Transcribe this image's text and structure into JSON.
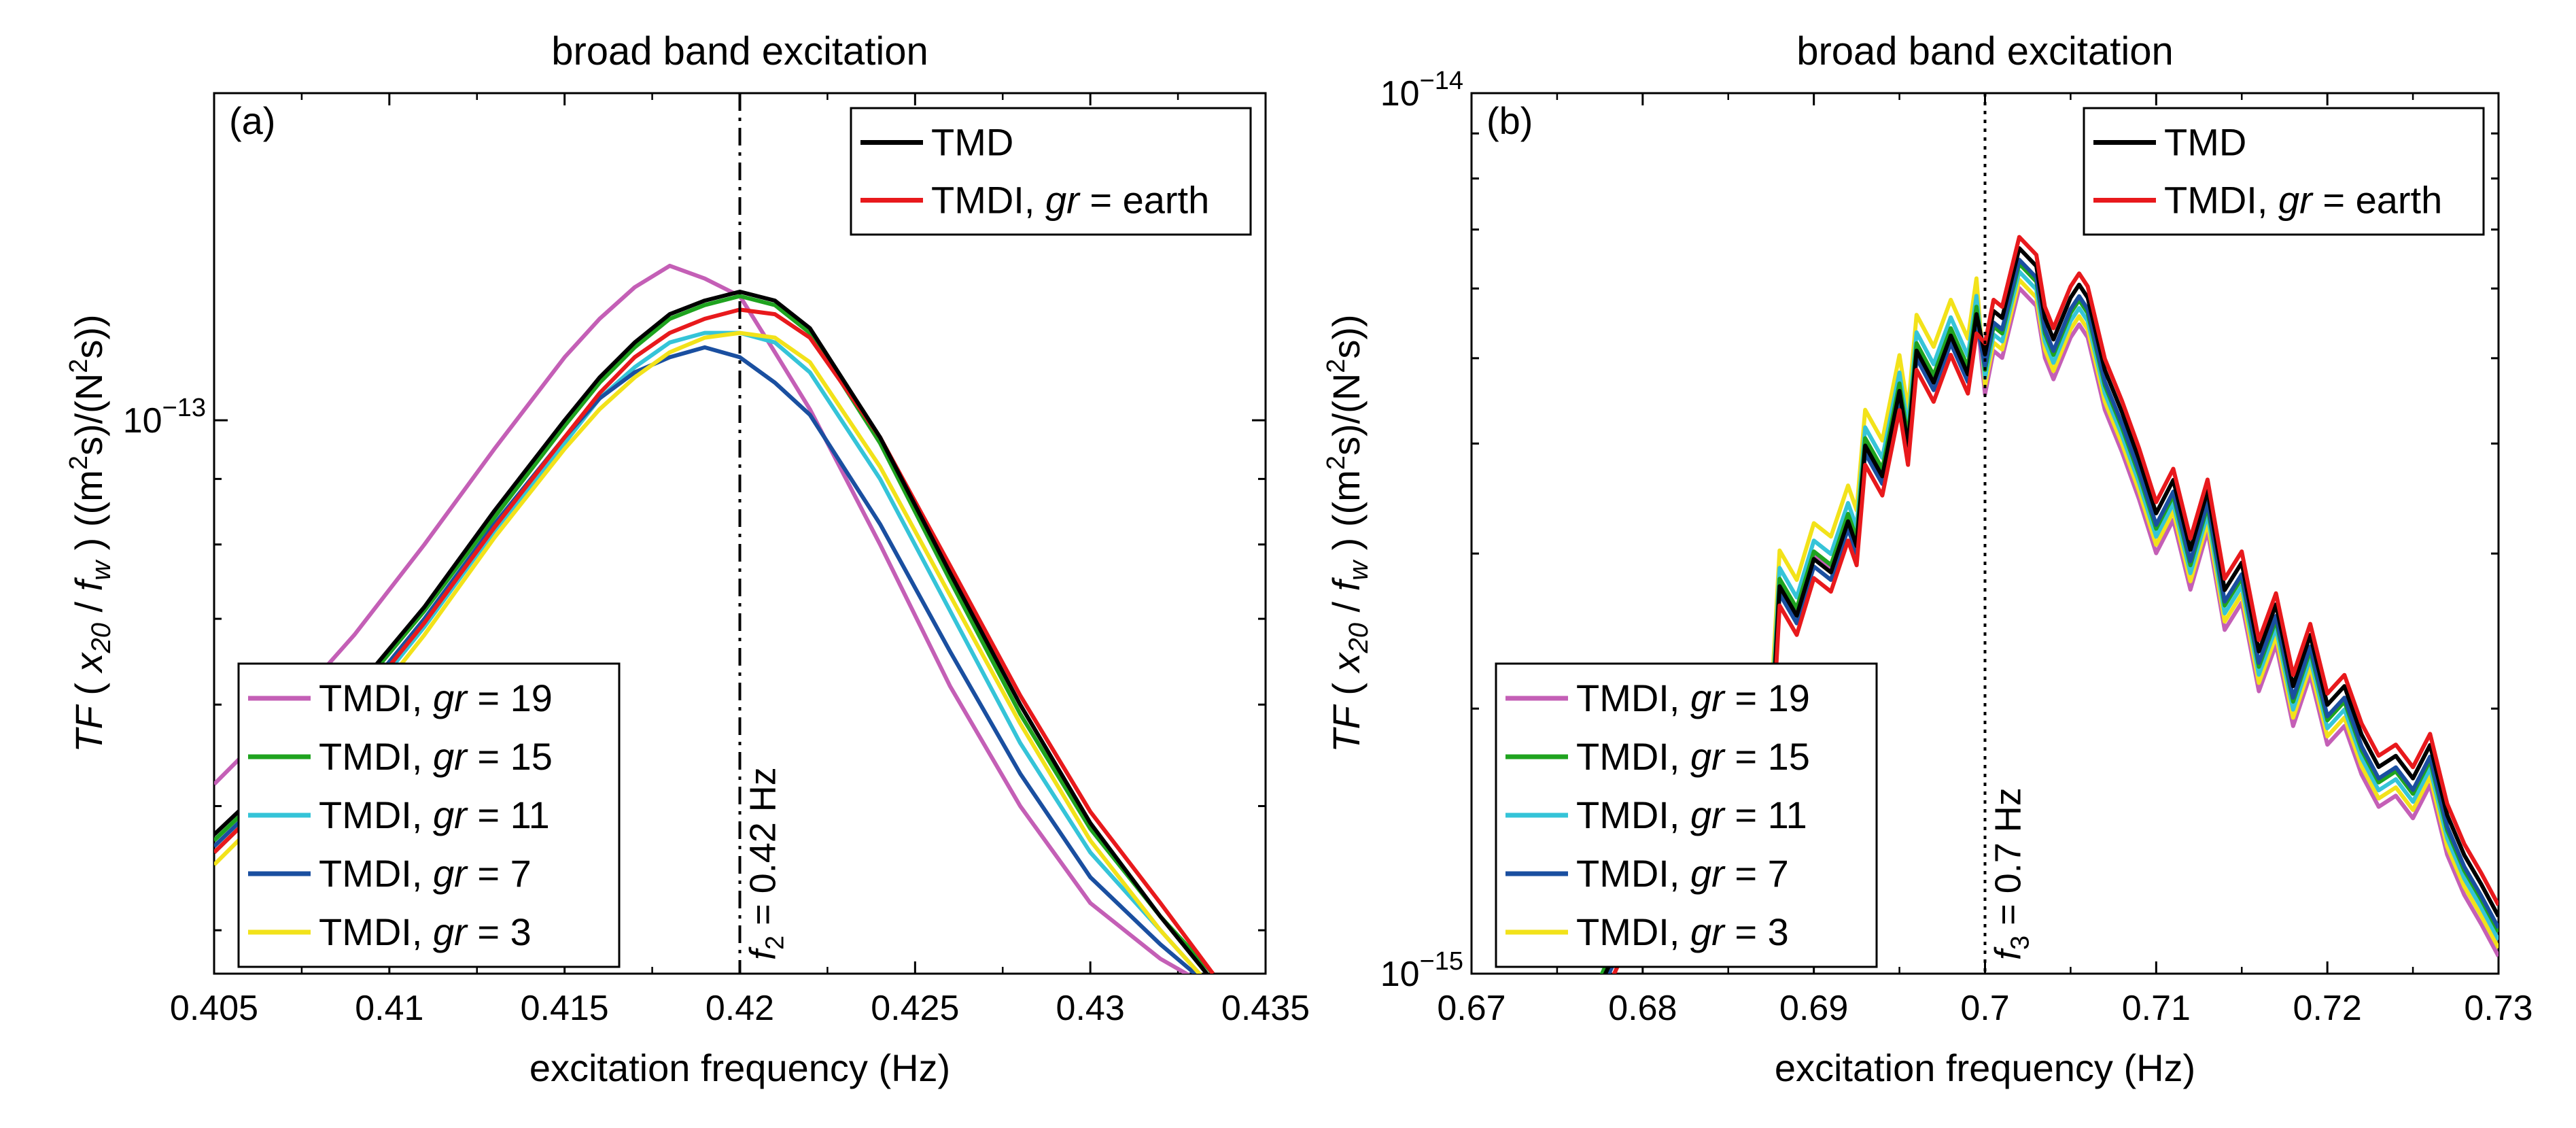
{
  "chart_data": [
    {
      "type": "line",
      "panel_label": "(a)",
      "title": "broad band excitation",
      "xlabel": "excitation frequency (Hz)",
      "ylabel_prefix": "TF",
      "ylabel_arg": "( x20 / fw )",
      "ylabel_units": "((m2s)/(N2s))",
      "xscale": "linear",
      "yscale": "log",
      "xlim": [
        0.405,
        0.435
      ],
      "ylim": [
        3.7e-14,
        1.8e-13
      ],
      "x_ticks": [
        0.405,
        0.41,
        0.415,
        0.42,
        0.425,
        0.43,
        0.435
      ],
      "x_tick_labels": [
        "0.405",
        "0.41",
        "0.415",
        "0.42",
        "0.425",
        "0.43",
        "0.435"
      ],
      "y_tick_labels": [
        {
          "value": 1e-13,
          "base": "10",
          "exp": "−13"
        }
      ],
      "vline": {
        "x": 0.42,
        "style": "dashdot",
        "label_prefix": "f",
        "label_sub": "2",
        "label_rest": " = 0.42 Hz"
      },
      "legend_top": [
        {
          "name_pre": "TMD",
          "name_italic": "",
          "name_post": "",
          "color": "#000000"
        },
        {
          "name_pre": "TMDI, ",
          "name_italic": "gr",
          "name_post": " = earth",
          "color": "#e8191c"
        }
      ],
      "legend_bottom": [
        {
          "name_pre": "TMDI, ",
          "name_italic": "gr",
          "name_post": " = 19",
          "color": "#c45fb6"
        },
        {
          "name_pre": "TMDI, ",
          "name_italic": "gr",
          "name_post": " = 15",
          "color": "#1fa31f"
        },
        {
          "name_pre": "TMDI, ",
          "name_italic": "gr",
          "name_post": " = 11",
          "color": "#35c4d8"
        },
        {
          "name_pre": "TMDI, ",
          "name_italic": "gr",
          "name_post": " = 7",
          "color": "#1a4fa0"
        },
        {
          "name_pre": "TMDI, ",
          "name_italic": "gr",
          "name_post": " = 3",
          "color": "#f2e21a"
        }
      ],
      "series": [
        {
          "name": "TMDI, gr = 19",
          "color": "#c45fb6",
          "x": [
            0.405,
            0.407,
            0.409,
            0.411,
            0.413,
            0.415,
            0.416,
            0.417,
            0.418,
            0.419,
            0.42,
            0.421,
            0.422,
            0.424,
            0.426,
            0.428,
            0.43,
            0.432,
            0.4335
          ],
          "y": [
            5.2e-14,
            5.9e-14,
            6.8e-14,
            8e-14,
            9.5e-14,
            1.12e-13,
            1.2e-13,
            1.27e-13,
            1.32e-13,
            1.29e-13,
            1.25e-13,
            1.13e-13,
            1.02e-13,
            8e-14,
            6.2e-14,
            5e-14,
            4.2e-14,
            3.8e-14,
            3.6e-14
          ]
        },
        {
          "name": "TMDI, gr = 15",
          "color": "#1fa31f",
          "x": [
            0.405,
            0.407,
            0.409,
            0.411,
            0.413,
            0.415,
            0.416,
            0.417,
            0.418,
            0.419,
            0.42,
            0.421,
            0.422,
            0.424,
            0.426,
            0.428,
            0.43,
            0.432,
            0.4335
          ],
          "y": [
            4.7e-14,
            5.3e-14,
            6.1e-14,
            7.1e-14,
            8.4e-14,
            9.9e-14,
            1.07e-13,
            1.14e-13,
            1.2e-13,
            1.23e-13,
            1.25e-13,
            1.23e-13,
            1.17e-13,
            9.6e-14,
            7.5e-14,
            5.9e-14,
            4.8e-14,
            4.1e-14,
            3.7e-14
          ]
        },
        {
          "name": "TMDI, gr = 11",
          "color": "#35c4d8",
          "x": [
            0.405,
            0.407,
            0.409,
            0.411,
            0.413,
            0.415,
            0.416,
            0.417,
            0.418,
            0.419,
            0.42,
            0.421,
            0.422,
            0.424,
            0.426,
            0.428,
            0.43,
            0.432,
            0.4335
          ],
          "y": [
            4.6e-14,
            5.2e-14,
            5.9e-14,
            6.9e-14,
            8.2e-14,
            9.6e-14,
            1.04e-13,
            1.1e-13,
            1.15e-13,
            1.17e-13,
            1.17e-13,
            1.15e-13,
            1.09e-13,
            9e-14,
            7.1e-14,
            5.6e-14,
            4.6e-14,
            4e-14,
            3.6e-14
          ]
        },
        {
          "name": "TMDI, gr = 7",
          "color": "#1a4fa0",
          "x": [
            0.405,
            0.407,
            0.409,
            0.411,
            0.413,
            0.415,
            0.416,
            0.417,
            0.418,
            0.419,
            0.42,
            0.421,
            0.422,
            0.424,
            0.426,
            0.428,
            0.43,
            0.432,
            0.4335
          ],
          "y": [
            4.65e-14,
            5.25e-14,
            6e-14,
            7e-14,
            8.3e-14,
            9.7e-14,
            1.04e-13,
            1.09e-13,
            1.12e-13,
            1.14e-13,
            1.12e-13,
            1.07e-13,
            1.01e-13,
            8.3e-14,
            6.6e-14,
            5.3e-14,
            4.4e-14,
            3.9e-14,
            3.6e-14
          ]
        },
        {
          "name": "TMDI, gr = 3",
          "color": "#f2e21a",
          "x": [
            0.405,
            0.407,
            0.409,
            0.411,
            0.413,
            0.415,
            0.416,
            0.417,
            0.418,
            0.419,
            0.42,
            0.421,
            0.422,
            0.424,
            0.426,
            0.428,
            0.43,
            0.432,
            0.4335
          ],
          "y": [
            4.5e-14,
            5.1e-14,
            5.8e-14,
            6.8e-14,
            8.1e-14,
            9.5e-14,
            1.02e-13,
            1.08e-13,
            1.13e-13,
            1.16e-13,
            1.17e-13,
            1.16e-13,
            1.11e-13,
            9.2e-14,
            7.3e-14,
            5.8e-14,
            4.7e-14,
            4e-14,
            3.6e-14
          ]
        },
        {
          "name": "TMDI, gr = earth",
          "color": "#e8191c",
          "x": [
            0.405,
            0.407,
            0.409,
            0.411,
            0.413,
            0.415,
            0.416,
            0.417,
            0.418,
            0.419,
            0.42,
            0.421,
            0.422,
            0.424,
            0.426,
            0.428,
            0.43,
            0.432,
            0.4335
          ],
          "y": [
            4.6e-14,
            5.2e-14,
            5.95e-14,
            6.95e-14,
            8.25e-14,
            9.7e-14,
            1.05e-13,
            1.12e-13,
            1.17e-13,
            1.2e-13,
            1.22e-13,
            1.21e-13,
            1.16e-13,
            9.7e-14,
            7.7e-14,
            6.1e-14,
            4.95e-14,
            4.2e-14,
            3.7e-14
          ]
        },
        {
          "name": "TMD",
          "color": "#000000",
          "x": [
            0.405,
            0.407,
            0.409,
            0.411,
            0.413,
            0.415,
            0.416,
            0.417,
            0.418,
            0.419,
            0.42,
            0.421,
            0.422,
            0.424,
            0.426,
            0.428,
            0.43,
            0.432,
            0.4335
          ],
          "y": [
            4.75e-14,
            5.35e-14,
            6.15e-14,
            7.15e-14,
            8.5e-14,
            1e-13,
            1.08e-13,
            1.15e-13,
            1.21e-13,
            1.24e-13,
            1.26e-13,
            1.24e-13,
            1.18e-13,
            9.7e-14,
            7.6e-14,
            6e-14,
            4.85e-14,
            4.1e-14,
            3.65e-14
          ]
        }
      ]
    },
    {
      "type": "line",
      "panel_label": "(b)",
      "title": "broad band excitation",
      "xlabel": "excitation frequency (Hz)",
      "ylabel_prefix": "TF",
      "ylabel_arg": "( x20 / fw )",
      "ylabel_units": "((m2s)/(N2s))",
      "xscale": "linear",
      "yscale": "log",
      "xlim": [
        0.67,
        0.73
      ],
      "ylim": [
        1e-15,
        1e-14
      ],
      "x_ticks": [
        0.67,
        0.68,
        0.69,
        0.7,
        0.71,
        0.72,
        0.73
      ],
      "x_tick_labels": [
        "0.67",
        "0.68",
        "0.69",
        "0.7",
        "0.71",
        "0.72",
        "0.73"
      ],
      "y_tick_labels": [
        {
          "value": 1e-14,
          "base": "10",
          "exp": "−14"
        },
        {
          "value": 1e-15,
          "base": "10",
          "exp": "−15"
        }
      ],
      "vline": {
        "x": 0.7,
        "style": "dotted",
        "label_prefix": "f",
        "label_sub": "3",
        "label_rest": " = 0.7 Hz"
      },
      "legend_top": [
        {
          "name_pre": "TMD",
          "name_italic": "",
          "name_post": "",
          "color": "#000000"
        },
        {
          "name_pre": "TMDI, ",
          "name_italic": "gr",
          "name_post": " = earth",
          "color": "#e8191c"
        }
      ],
      "legend_bottom": [
        {
          "name_pre": "TMDI, ",
          "name_italic": "gr",
          "name_post": " = 19",
          "color": "#c45fb6"
        },
        {
          "name_pre": "TMDI, ",
          "name_italic": "gr",
          "name_post": " = 15",
          "color": "#1fa31f"
        },
        {
          "name_pre": "TMDI, ",
          "name_italic": "gr",
          "name_post": " = 11",
          "color": "#35c4d8"
        },
        {
          "name_pre": "TMDI, ",
          "name_italic": "gr",
          "name_post": " = 7",
          "color": "#1a4fa0"
        },
        {
          "name_pre": "TMDI, ",
          "name_italic": "gr",
          "name_post": " = 3",
          "color": "#f2e21a"
        }
      ],
      "base_curve": {
        "x": [
          0.6775,
          0.679,
          0.681,
          0.683,
          0.685,
          0.6865,
          0.6875,
          0.688,
          0.689,
          0.69,
          0.691,
          0.692,
          0.6925,
          0.693,
          0.694,
          0.695,
          0.6955,
          0.696,
          0.697,
          0.698,
          0.699,
          0.6995,
          0.7,
          0.7005,
          0.701,
          0.702,
          0.703,
          0.7035,
          0.704,
          0.705,
          0.7055,
          0.706,
          0.707,
          0.708,
          0.709,
          0.71,
          0.711,
          0.712,
          0.713,
          0.714,
          0.715,
          0.716,
          0.717,
          0.718,
          0.719,
          0.72,
          0.721,
          0.722,
          0.723,
          0.724,
          0.725,
          0.726,
          0.727,
          0.728,
          0.729,
          0.73
        ],
        "y": [
          9.5e-16,
          1.1e-15,
          1.2e-15,
          1.3e-15,
          1.45e-15,
          1.55e-15,
          1.8e-15,
          2.7e-15,
          2.5e-15,
          2.9e-15,
          2.8e-15,
          3.2e-15,
          3e-15,
          3.9e-15,
          3.6e-15,
          4.5e-15,
          3.9e-15,
          5e-15,
          4.6e-15,
          5.2e-15,
          4.7e-15,
          5.5e-15,
          5e-15,
          5.6e-15,
          5.5e-15,
          6.6e-15,
          6.3e-15,
          5.5e-15,
          5.2e-15,
          5.8e-15,
          6e-15,
          5.8e-15,
          4.8e-15,
          4.3e-15,
          3.8e-15,
          3.3e-15,
          3.6e-15,
          3e-15,
          3.5e-15,
          2.7e-15,
          2.9e-15,
          2.3e-15,
          2.6e-15,
          2.1e-15,
          2.4e-15,
          2e-15,
          2.1e-15,
          1.85e-15,
          1.7e-15,
          1.75e-15,
          1.65e-15,
          1.8e-15,
          1.5e-15,
          1.35e-15,
          1.25e-15,
          1.15e-15
        ]
      },
      "series": [
        {
          "name": "TMDI, gr = 19",
          "color": "#c45fb6",
          "factor_before": 1.03,
          "factor_after": 0.91
        },
        {
          "name": "TMDI, gr = 3",
          "color": "#f2e21a",
          "factor_before": 1.12,
          "factor_after": 0.93
        },
        {
          "name": "TMDI, gr = 11",
          "color": "#35c4d8",
          "factor_before": 1.07,
          "factor_after": 0.95
        },
        {
          "name": "TMDI, gr = 15",
          "color": "#1fa31f",
          "factor_before": 1.04,
          "factor_after": 0.97
        },
        {
          "name": "TMDI, gr = 7",
          "color": "#1a4fa0",
          "factor_before": 1.0,
          "factor_after": 0.98
        },
        {
          "name": "TMD",
          "color": "#000000",
          "factor_before": 1.02,
          "factor_after": 1.01
        },
        {
          "name": "TMDI, gr = earth",
          "color": "#e8191c",
          "factor_before": 0.97,
          "factor_after": 1.04
        }
      ]
    }
  ]
}
